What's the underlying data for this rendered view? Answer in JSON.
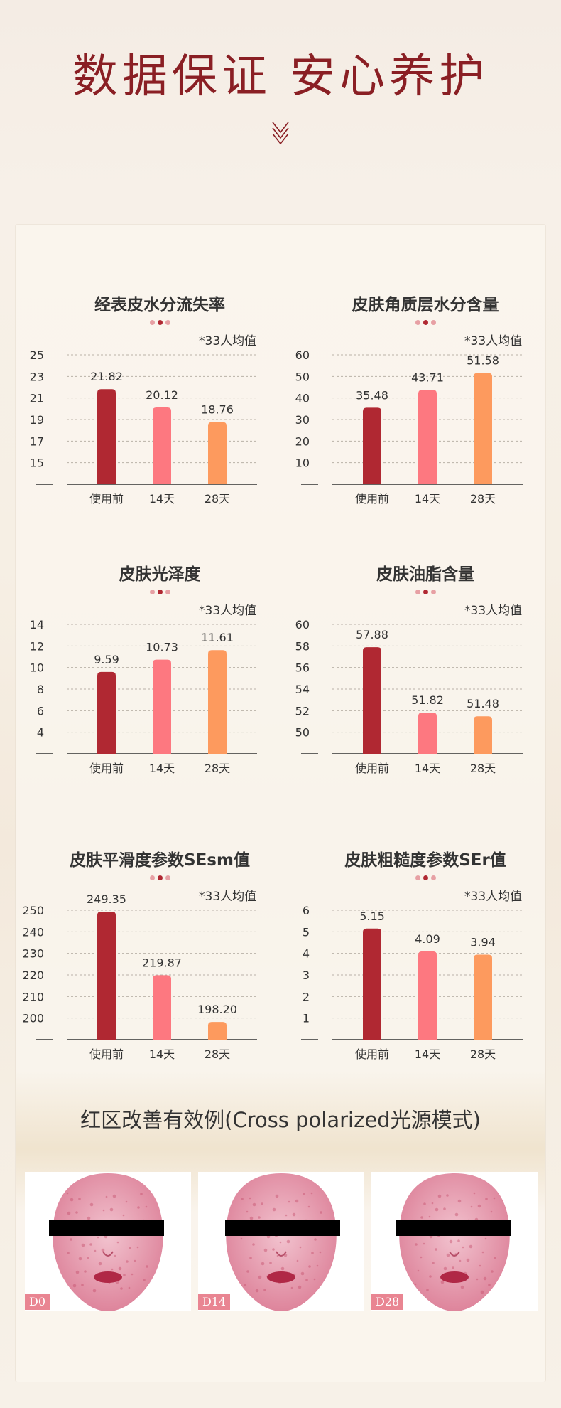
{
  "header": {
    "title": "数据保证 安心养护"
  },
  "colors": {
    "title": "#8a1f24",
    "bar_before": "#b02832",
    "bar_14": "#fd7880",
    "bar_28": "#fd9a5e",
    "photo_tag": "#e98592"
  },
  "chart_data": [
    {
      "type": "bar",
      "title": "经表皮水分流失率",
      "note": "*33人均值",
      "categories": [
        "使用前",
        "14天",
        "28天"
      ],
      "values": [
        21.82,
        20.12,
        18.76
      ],
      "value_labels": [
        "21.82",
        "20.12",
        "18.76"
      ],
      "yticks": [
        "15",
        "17",
        "19",
        "21",
        "23",
        "25"
      ],
      "ylim": [
        13,
        25
      ],
      "grid": true
    },
    {
      "type": "bar",
      "title": "皮肤角质层水分含量",
      "note": "*33人均值",
      "categories": [
        "使用前",
        "14天",
        "28天"
      ],
      "values": [
        35.48,
        43.71,
        51.58
      ],
      "value_labels": [
        "35.48",
        "43.71",
        "51.58"
      ],
      "yticks": [
        "10",
        "20",
        "30",
        "40",
        "50",
        "60"
      ],
      "ylim": [
        0,
        60
      ],
      "grid": true
    },
    {
      "type": "bar",
      "title": "皮肤光泽度",
      "note": "*33人均值",
      "categories": [
        "使用前",
        "14天",
        "28天"
      ],
      "values": [
        9.59,
        10.73,
        11.61
      ],
      "value_labels": [
        "9.59",
        "10.73",
        "11.61"
      ],
      "yticks": [
        "4",
        "6",
        "8",
        "10",
        "12",
        "14"
      ],
      "ylim": [
        2,
        14
      ],
      "grid": true
    },
    {
      "type": "bar",
      "title": "皮肤油脂含量",
      "note": "*33人均值",
      "categories": [
        "使用前",
        "14天",
        "28天"
      ],
      "values": [
        57.88,
        51.82,
        51.48
      ],
      "value_labels": [
        "57.88",
        "51.82",
        "51.48"
      ],
      "yticks": [
        "50",
        "52",
        "54",
        "56",
        "58",
        "60"
      ],
      "ylim": [
        48,
        60
      ],
      "grid": true
    },
    {
      "type": "bar",
      "title": "皮肤平滑度参数SEsm值",
      "note": "*33人均值",
      "categories": [
        "使用前",
        "14天",
        "28天"
      ],
      "values": [
        249.35,
        219.87,
        198.2
      ],
      "value_labels": [
        "249.35",
        "219.87",
        "198.20"
      ],
      "yticks": [
        "200",
        "210",
        "220",
        "230",
        "240",
        "250"
      ],
      "ylim": [
        190,
        250
      ],
      "grid": true
    },
    {
      "type": "bar",
      "title": "皮肤粗糙度参数SEr值",
      "note": "*33人均值",
      "categories": [
        "使用前",
        "14天",
        "28天"
      ],
      "values": [
        5.15,
        4.09,
        3.94
      ],
      "value_labels": [
        "5.15",
        "4.09",
        "3.94"
      ],
      "yticks": [
        "1",
        "2",
        "3",
        "4",
        "5",
        "6"
      ],
      "ylim": [
        0,
        6
      ],
      "grid": true
    }
  ],
  "section2": {
    "title": "红区改善有效例(Cross polarized光源模式)",
    "photos": [
      {
        "tag": "D0"
      },
      {
        "tag": "D14"
      },
      {
        "tag": "D28"
      }
    ]
  }
}
